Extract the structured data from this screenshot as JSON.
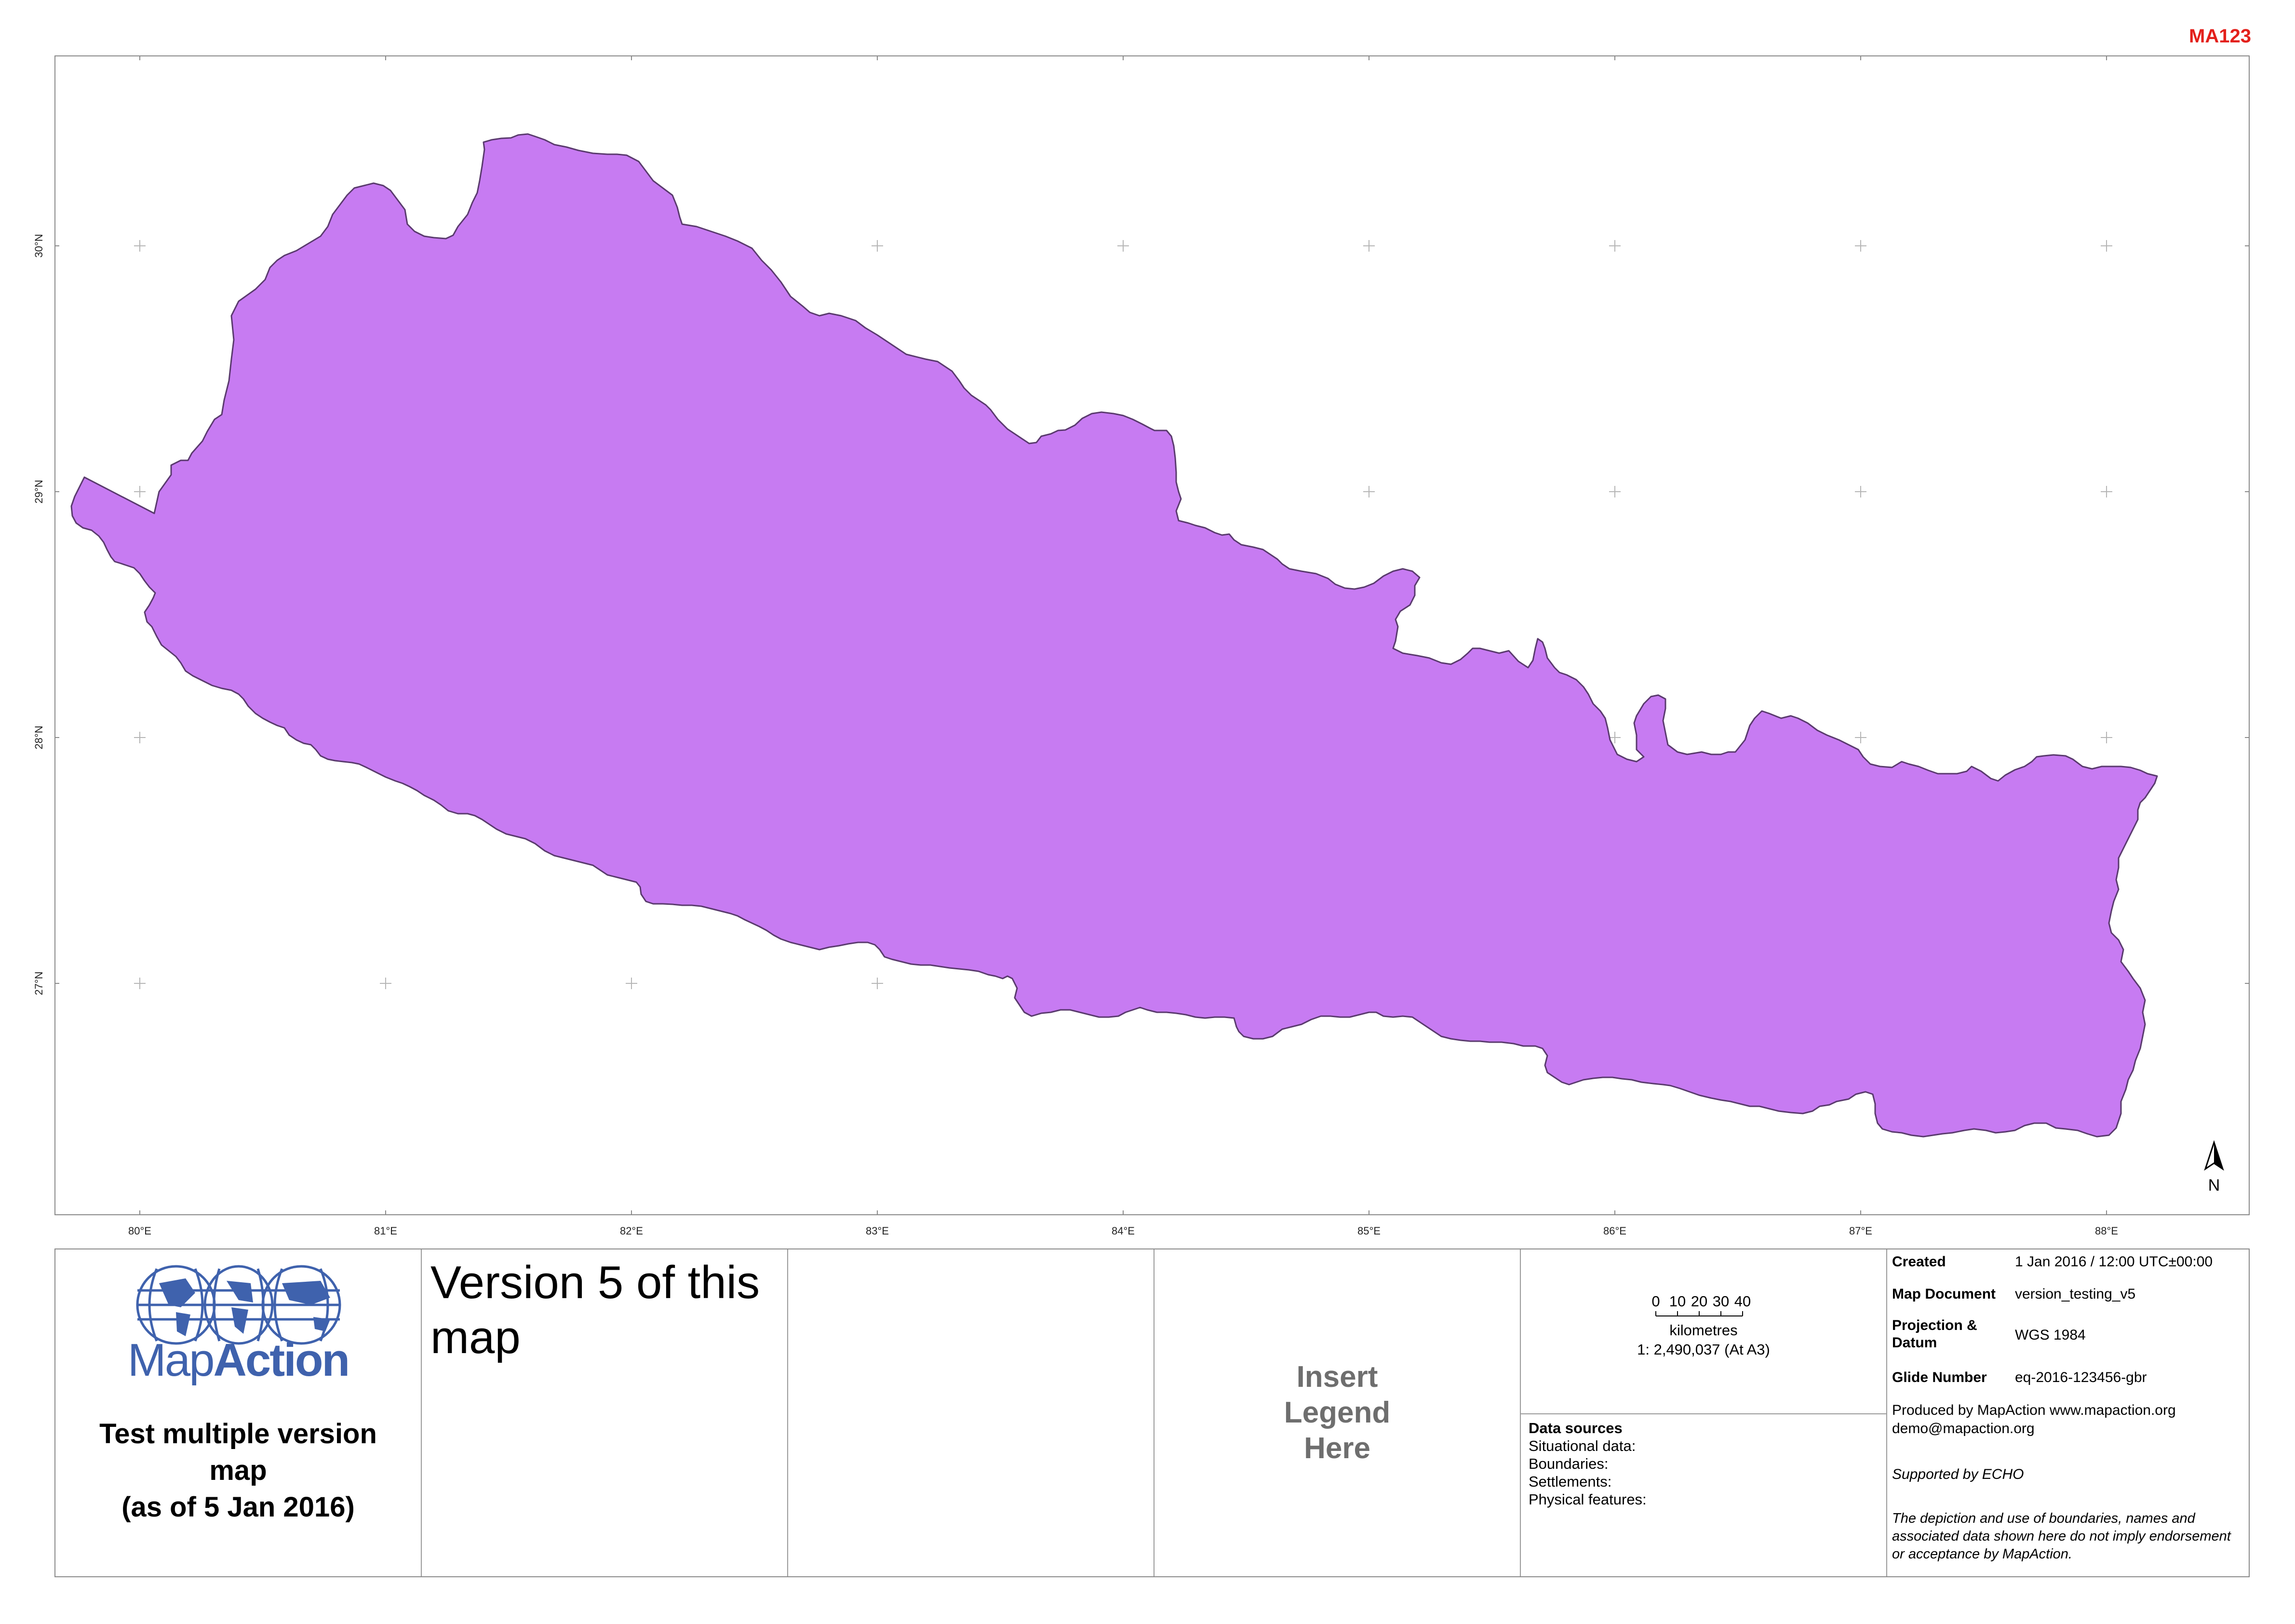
{
  "map_reference": "MA123",
  "map": {
    "country_fill": "#c77bf2",
    "country_outline": "#5a3a6e",
    "graticule": {
      "longitudes": [
        "80°E",
        "81°E",
        "82°E",
        "83°E",
        "84°E",
        "85°E",
        "86°E",
        "87°E",
        "88°E"
      ],
      "latitudes": [
        "30°N",
        "29°N",
        "28°N",
        "27°N"
      ]
    },
    "north_arrow_label": "N"
  },
  "logo": {
    "brand_light": "Map",
    "brand_bold": "Action",
    "brand_color": "#3f62ad"
  },
  "title": {
    "line1": "Test multiple version",
    "line2": "map",
    "line3": "(as of 5 Jan 2016)"
  },
  "version_text": "Version 5 of this map",
  "legend_placeholder": {
    "line1": "Insert",
    "line2": "Legend",
    "line3": "Here"
  },
  "scale": {
    "ticks": [
      "0",
      "10",
      "20",
      "30",
      "40"
    ],
    "units": "kilometres",
    "ratio": "1: 2,490,037 (At A3)"
  },
  "data_sources": {
    "heading": "Data sources",
    "items": [
      "Situational data:",
      "Boundaries:",
      "Settlements:",
      "Physical features:"
    ]
  },
  "metadata": {
    "created_label": "Created",
    "created_value": "1 Jan 2016 / 12:00  UTC±00:00",
    "document_label": "Map Document",
    "document_value": "version_testing_v5",
    "projection_label_1": "Projection &",
    "projection_label_2": "Datum",
    "projection_value": "WGS 1984",
    "glide_label": "Glide Number",
    "glide_value": "eq-2016-123456-gbr",
    "produced_by": "Produced by MapAction www.mapaction.org",
    "email": "demo@mapaction.org",
    "supported_by": "Supported by ECHO",
    "disclaimer": "The depiction and use of boundaries, names and associated data shown here do not imply endorsement or acceptance by MapAction."
  }
}
